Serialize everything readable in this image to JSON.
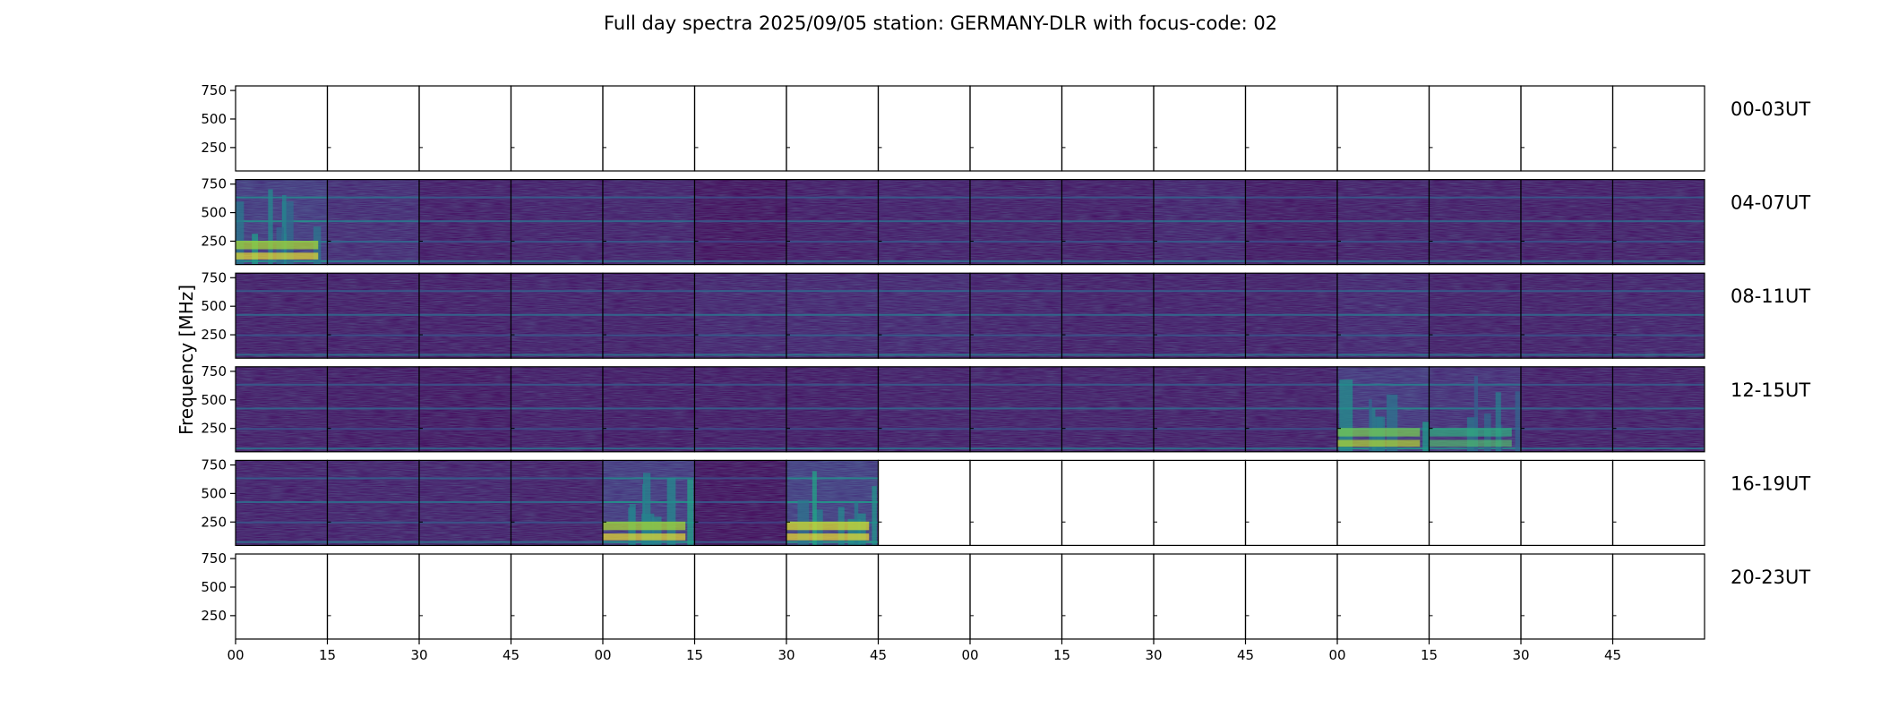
{
  "chart_data": {
    "type": "heatmap",
    "title": "Full day spectra 2025/09/05 station: GERMANY-DLR with focus-code: 02",
    "ylabel": "Frequency [MHz]",
    "xlabel": "",
    "y_ticks": [
      250,
      500,
      750
    ],
    "y_range_mhz": [
      45,
      790
    ],
    "x_tick_labels": [
      "00",
      "15",
      "30",
      "45",
      "00",
      "15",
      "30",
      "45",
      "00",
      "15",
      "30",
      "45",
      "00",
      "15",
      "30",
      "45"
    ],
    "colormap": "viridis",
    "grid": false,
    "rows": [
      {
        "label": "00-03UT",
        "cells": [
          0,
          0,
          0,
          0,
          0,
          0,
          0,
          0,
          0,
          0,
          0,
          0,
          0,
          0,
          0,
          0
        ]
      },
      {
        "label": "04-07UT",
        "cells": [
          0.55,
          0.35,
          0.18,
          0.22,
          0.24,
          0.08,
          0.18,
          0.22,
          0.2,
          0.18,
          0.26,
          0.14,
          0.2,
          0.2,
          0.18,
          0.2
        ]
      },
      {
        "label": "08-11UT",
        "cells": [
          0.2,
          0.2,
          0.18,
          0.22,
          0.2,
          0.28,
          0.3,
          0.3,
          0.24,
          0.2,
          0.22,
          0.2,
          0.3,
          0.2,
          0.2,
          0.24
        ]
      },
      {
        "label": "12-15UT",
        "cells": [
          0.2,
          0.16,
          0.12,
          0.18,
          0.16,
          0.16,
          0.16,
          0.2,
          0.2,
          0.2,
          0.2,
          0.2,
          0.5,
          0.4,
          0.18,
          0.2
        ]
      },
      {
        "label": "16-19UT",
        "cells": [
          0.22,
          0.24,
          0.24,
          0.2,
          0.55,
          0.08,
          0.6,
          0,
          0,
          0,
          0,
          0,
          0,
          0,
          0,
          0
        ]
      },
      {
        "label": "20-23UT",
        "cells": [
          0,
          0,
          0,
          0,
          0,
          0,
          0,
          0,
          0,
          0,
          0,
          0,
          0,
          0,
          0,
          0
        ]
      }
    ]
  }
}
